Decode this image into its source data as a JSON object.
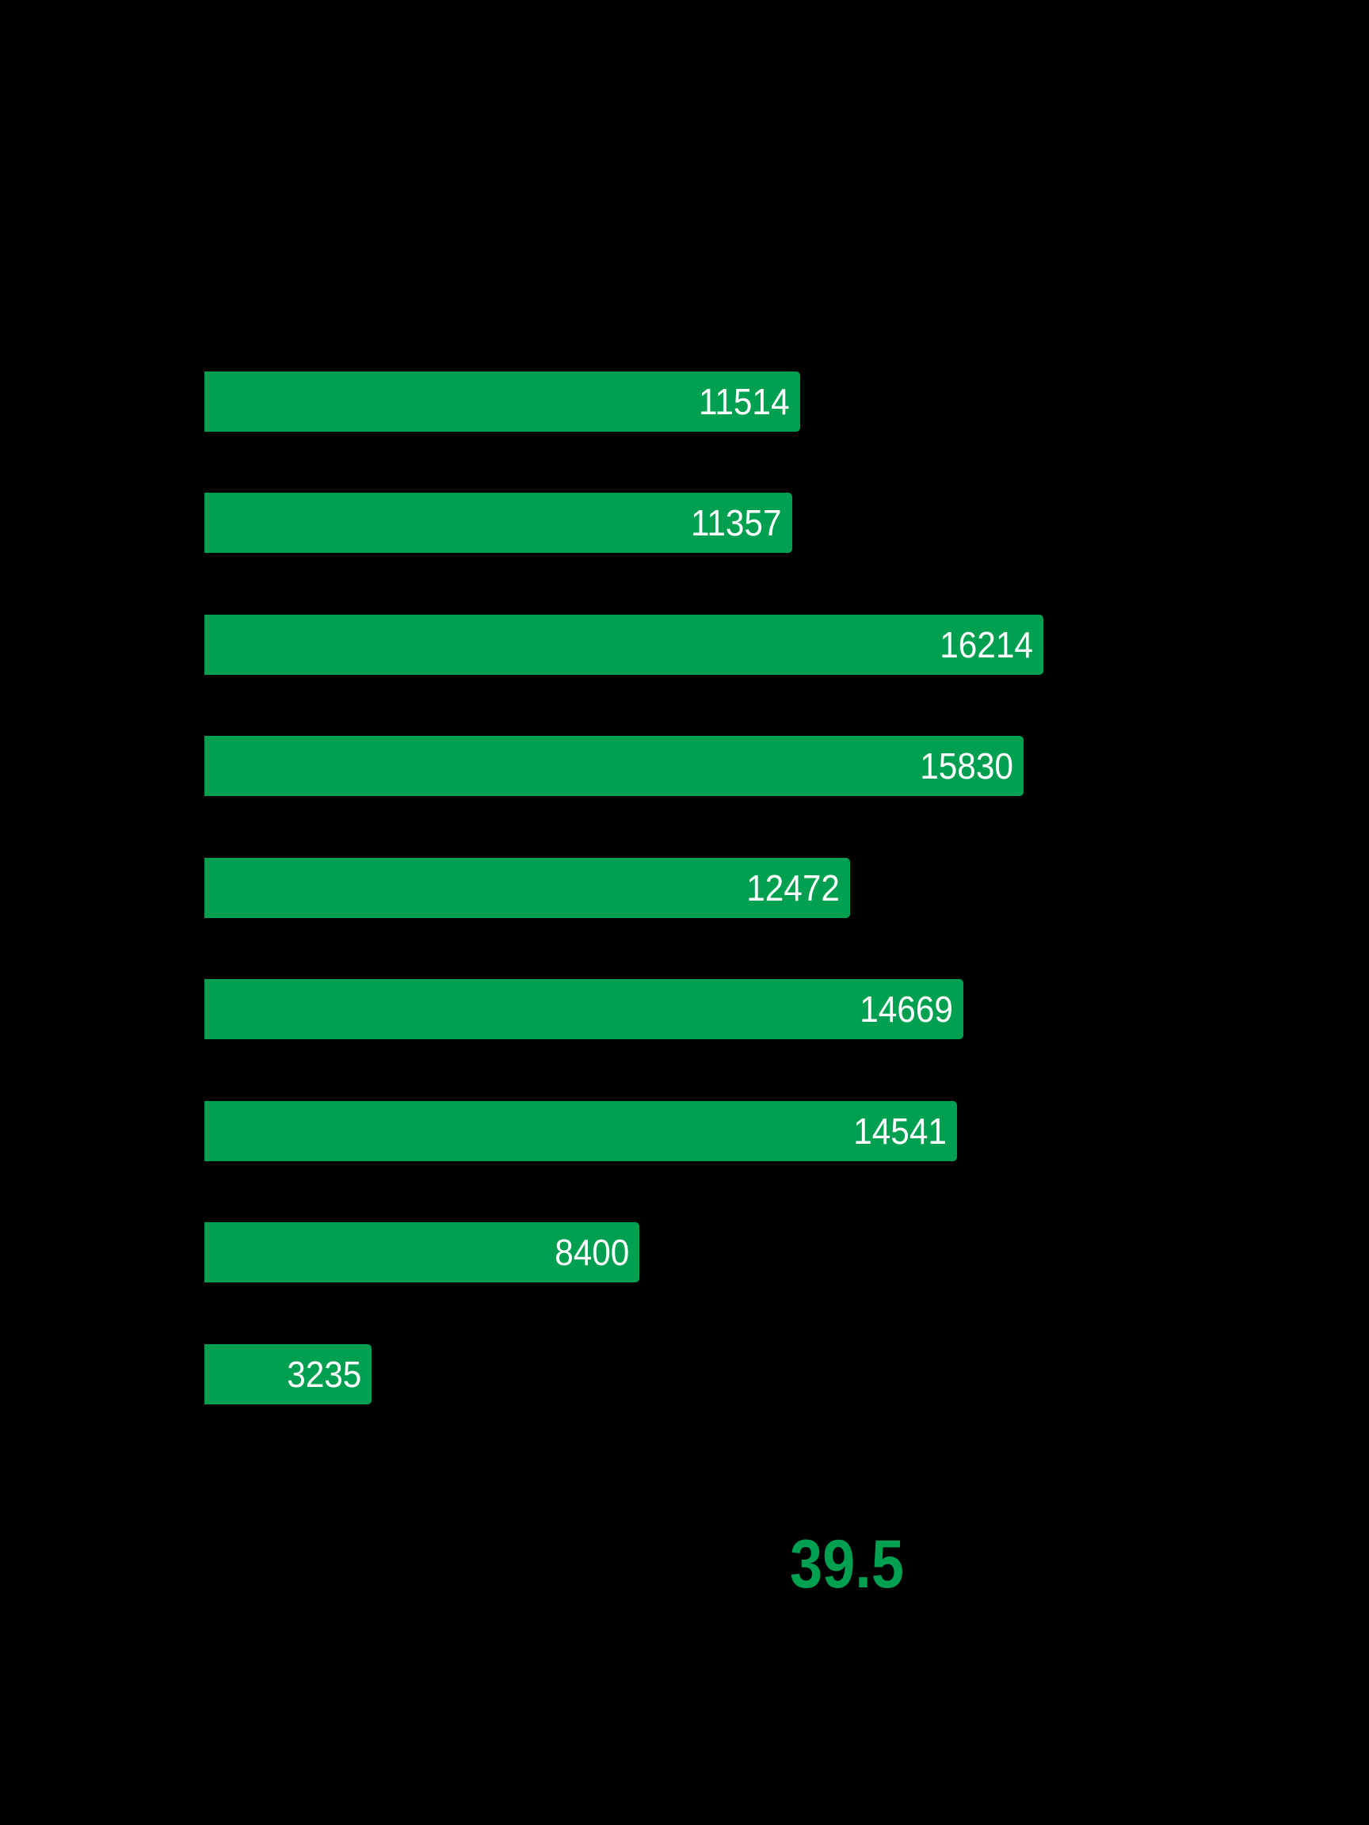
{
  "colors": {
    "background": "#000000",
    "bar": "#00a050",
    "bar_label": "#ffffff",
    "highlight_value": "#00a050"
  },
  "summary": {
    "value": "39.5"
  },
  "bars": [
    {
      "label": "11514",
      "value": 11514
    },
    {
      "label": "11357",
      "value": 11357
    },
    {
      "label": "16214",
      "value": 16214
    },
    {
      "label": "15830",
      "value": 15830
    },
    {
      "label": "12472",
      "value": 12472
    },
    {
      "label": "14669",
      "value": 14669
    },
    {
      "label": "14541",
      "value": 14541
    },
    {
      "label": "8400",
      "value": 8400
    },
    {
      "label": "3235",
      "value": 3235
    }
  ],
  "chart_data": {
    "type": "bar",
    "orientation": "horizontal",
    "title": "",
    "xlabel": "",
    "ylabel": "",
    "categories": [
      "",
      "",
      "",
      "",
      "",
      "",
      "",
      "",
      ""
    ],
    "values": [
      11514,
      11357,
      16214,
      15830,
      12472,
      14669,
      14541,
      8400,
      3235
    ],
    "data_labels": [
      "11514",
      "11357",
      "16214",
      "15830",
      "12472",
      "14669",
      "14541",
      "8400",
      "3235"
    ],
    "xlim": [
      0,
      16214
    ],
    "grid": false,
    "legend": null,
    "annotations": [
      "39.5"
    ]
  }
}
